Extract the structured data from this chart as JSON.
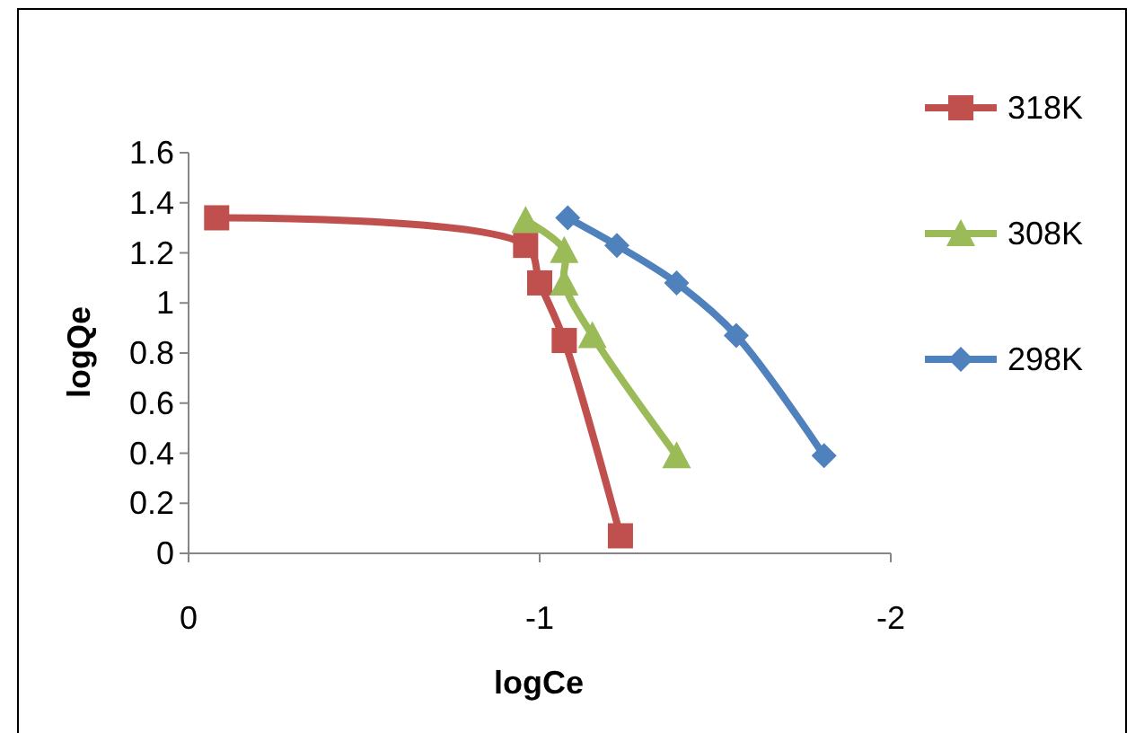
{
  "chart_data": {
    "type": "line",
    "xlabel": "logCe",
    "ylabel": "logQe",
    "xlim": [
      0,
      -2
    ],
    "xticks": [
      0,
      -1,
      -2
    ],
    "ylim": [
      0,
      1.6
    ],
    "yticks": [
      0,
      0.2,
      0.4,
      0.6,
      0.8,
      1,
      1.2,
      1.4,
      1.6
    ],
    "grid": false,
    "legend": "right",
    "series": [
      {
        "name": "318K",
        "color": "#c0504d",
        "marker": "square",
        "x": [
          -0.08,
          -0.96,
          -1.0,
          -1.07,
          -1.23
        ],
        "values": [
          1.34,
          1.23,
          1.08,
          0.85,
          0.07
        ]
      },
      {
        "name": "308K",
        "color": "#9bbb59",
        "marker": "triangle",
        "x": [
          -0.96,
          -1.07,
          -1.07,
          -1.15,
          -1.39
        ],
        "values": [
          1.33,
          1.21,
          1.08,
          0.87,
          0.39
        ]
      },
      {
        "name": "298K",
        "color": "#4f81bd",
        "marker": "diamond",
        "x": [
          -1.08,
          -1.22,
          -1.39,
          -1.56,
          -1.81
        ],
        "values": [
          1.34,
          1.23,
          1.08,
          0.87,
          0.39
        ]
      }
    ]
  }
}
